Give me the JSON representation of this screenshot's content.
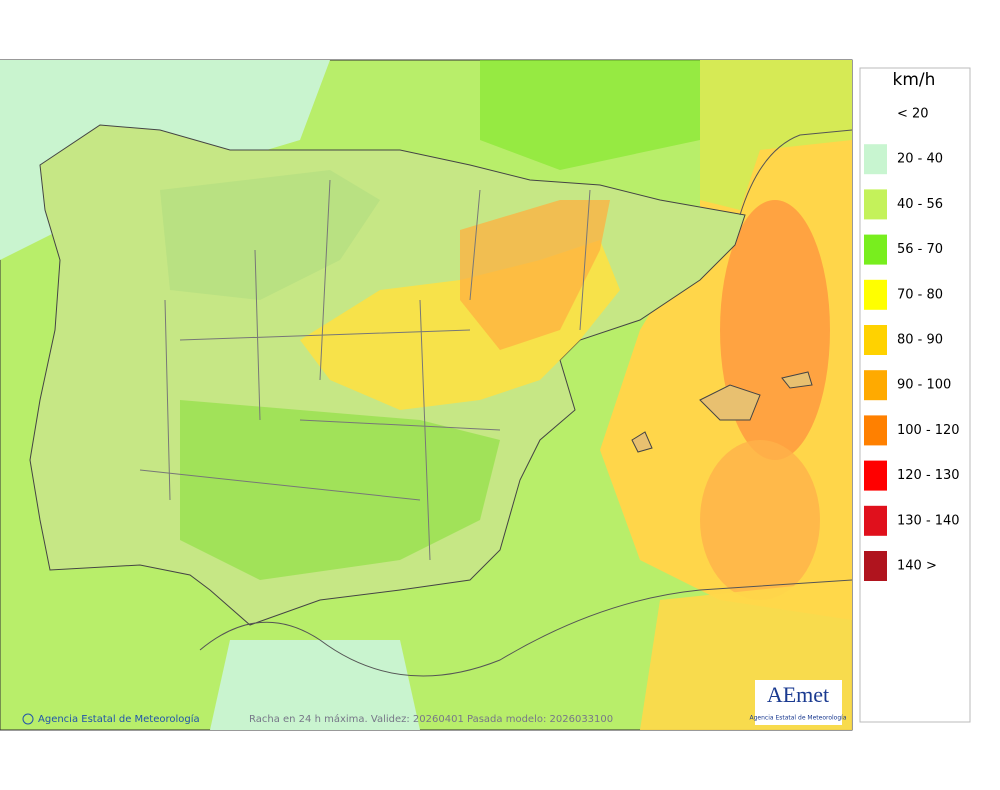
{
  "legend": {
    "unit": "km/h",
    "items": [
      {
        "label": "< 20",
        "color": "#ffffff"
      },
      {
        "label": "20 - 40",
        "color": "#c8f5d0"
      },
      {
        "label": "40 - 56",
        "color": "#c4f25a"
      },
      {
        "label": "56 - 70",
        "color": "#78ee1e"
      },
      {
        "label": "70 - 80",
        "color": "#ffff00"
      },
      {
        "label": "80 - 90",
        "color": "#ffd200"
      },
      {
        "label": "90 - 100",
        "color": "#ffaa00"
      },
      {
        "label": "100 - 120",
        "color": "#ff8000"
      },
      {
        "label": "120 - 130",
        "color": "#ff0000"
      },
      {
        "label": "130 - 140",
        "color": "#e0101c"
      },
      {
        "label": "140 >",
        "color": "#b0141e"
      }
    ]
  },
  "footer": {
    "credit": "Agencia Estatal de Meteorología",
    "caption": "Racha en 24 h máxima. Validez: 20260401 Pasada modelo: 2026033100"
  },
  "logo": {
    "name": "AEmet",
    "subtitle": "Agencia Estatal de Meteorología"
  }
}
